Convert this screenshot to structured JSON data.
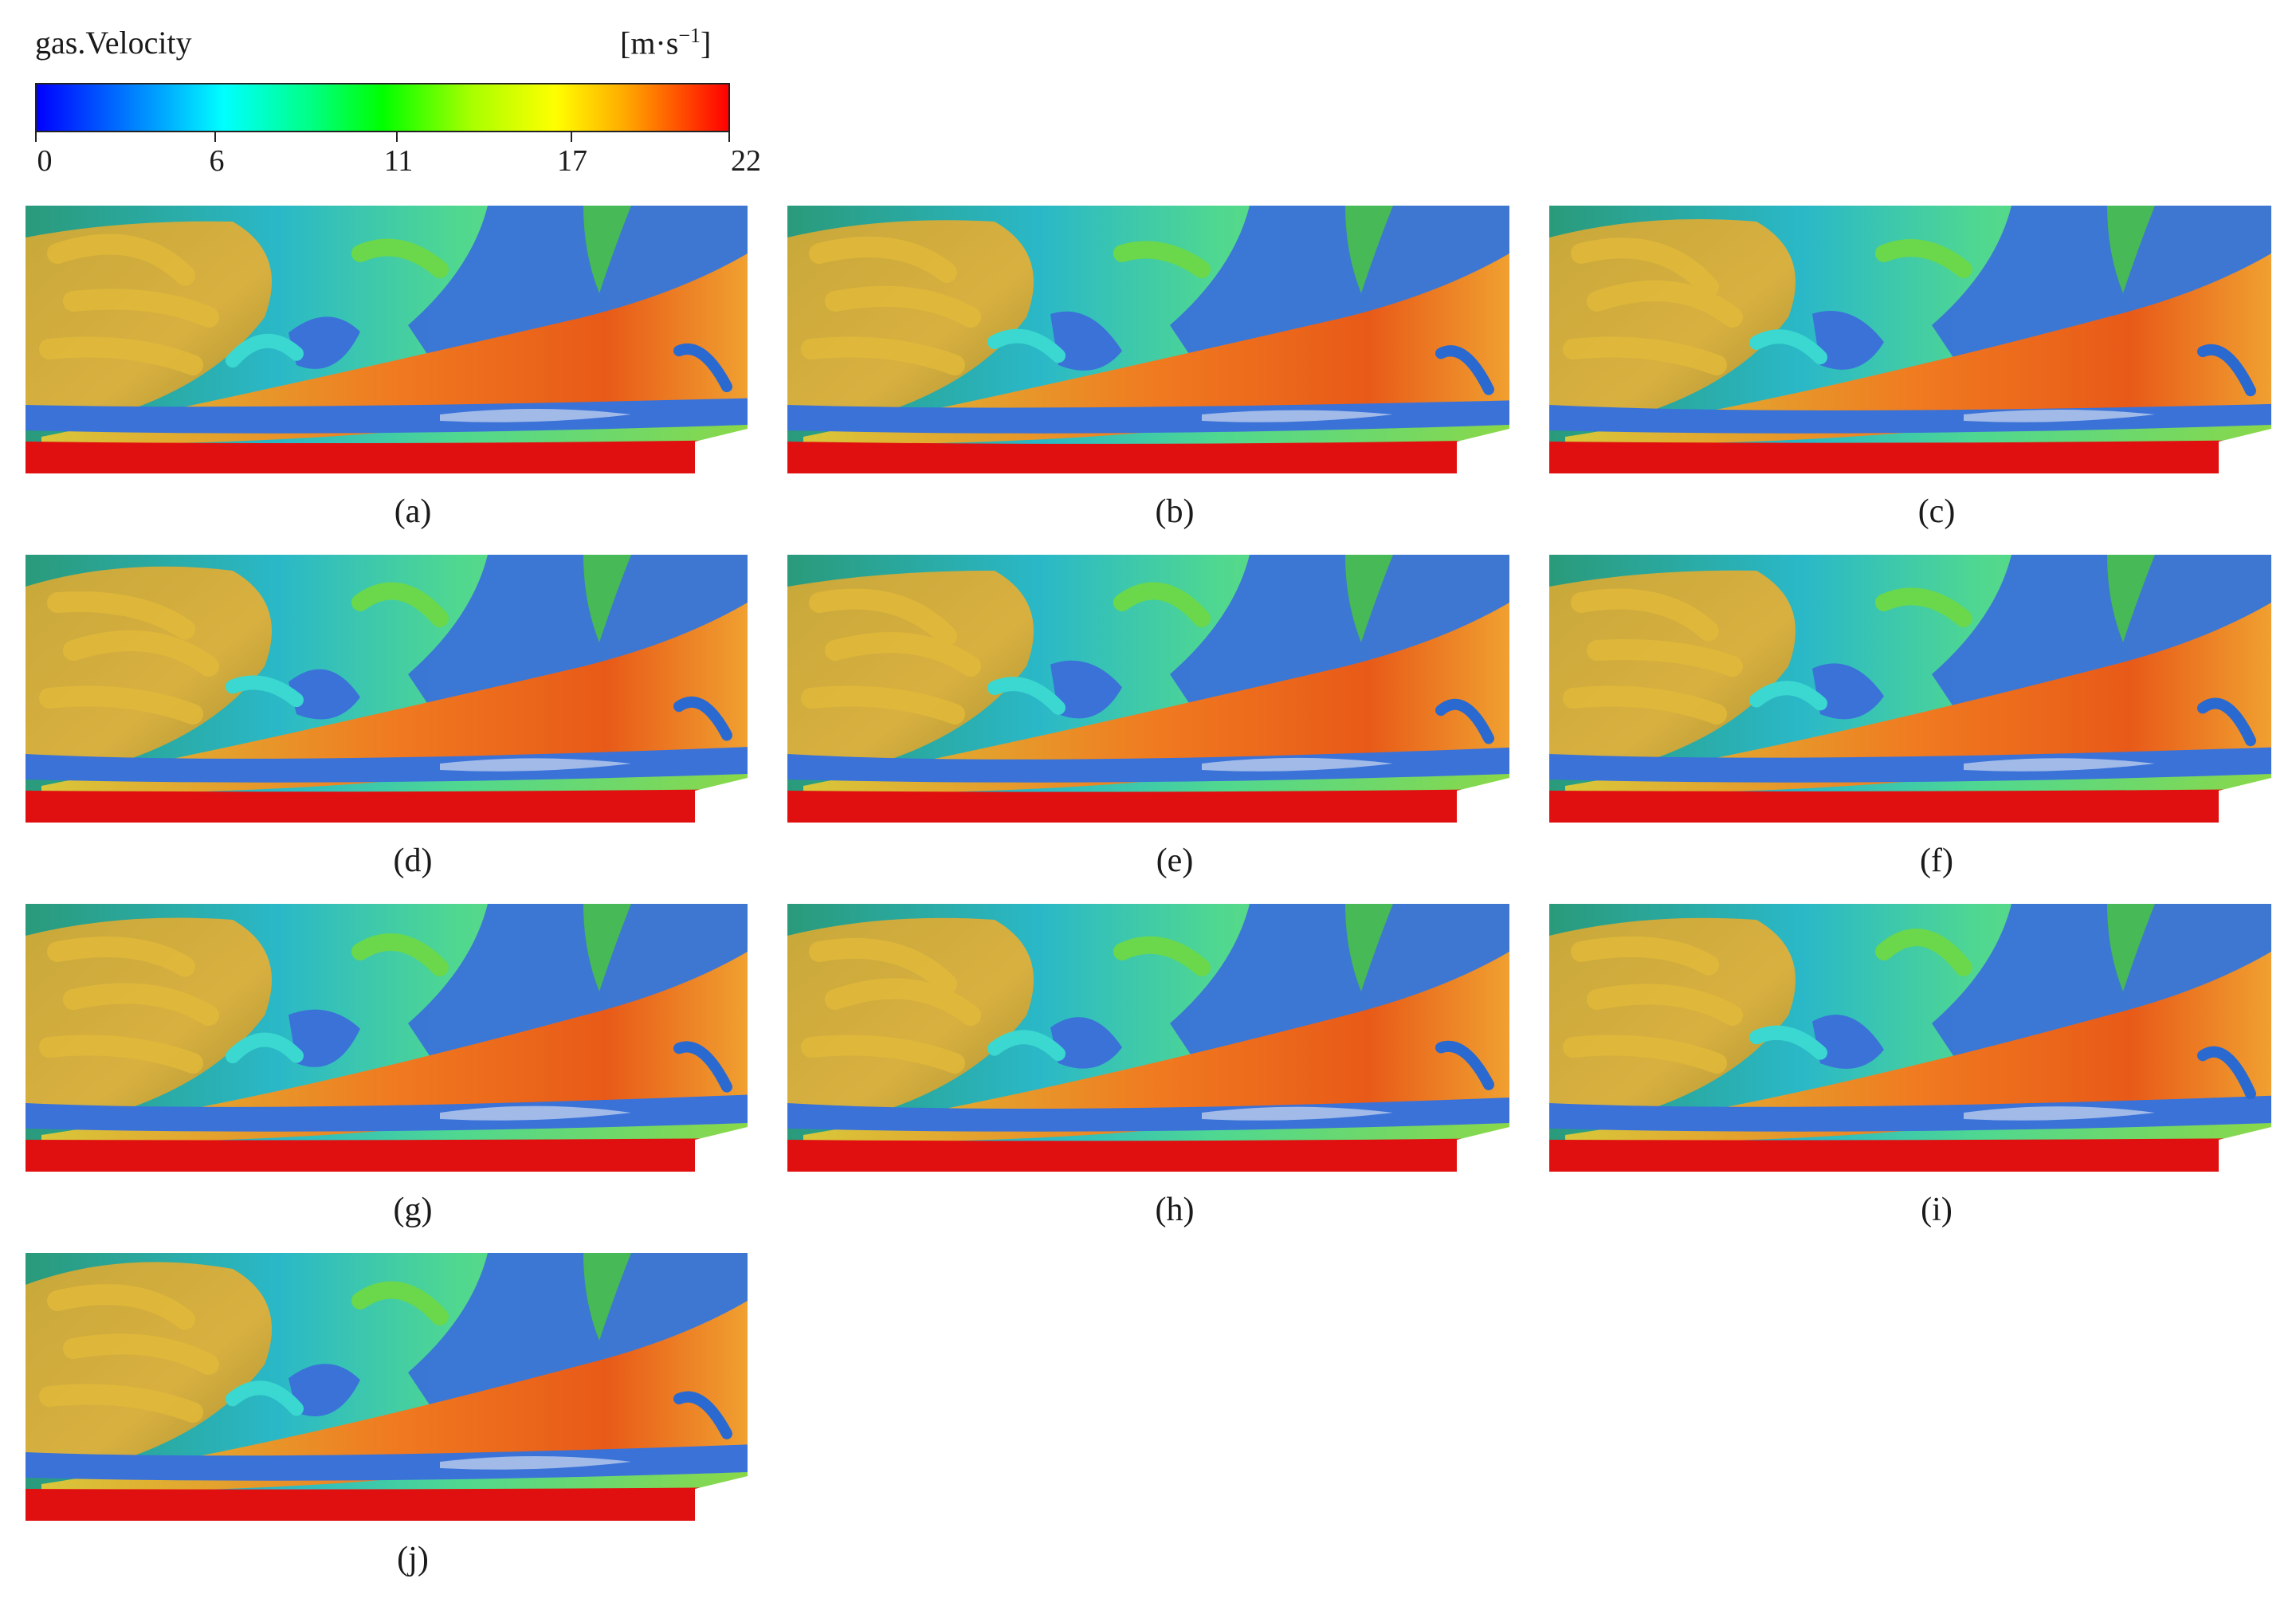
{
  "legend": {
    "title": "gas.Velocity",
    "unit": "[m·s",
    "unit_exp": "−1",
    "unit_close": "]",
    "ticks": [
      "0",
      "6",
      "11",
      "17",
      "22"
    ]
  },
  "panels": [
    {
      "label": "(a)"
    },
    {
      "label": "(b)"
    },
    {
      "label": "(c)"
    },
    {
      "label": "(d)"
    },
    {
      "label": "(e)"
    },
    {
      "label": "(f)"
    },
    {
      "label": "(g)"
    },
    {
      "label": "(h)"
    },
    {
      "label": "(i)"
    },
    {
      "label": "(j)"
    }
  ],
  "colors": {
    "low": "#0000ff",
    "mid": "#00ff00",
    "high": "#ff0000",
    "blue_surface": "#3a72d8",
    "orange": "#f08a1c",
    "yellow": "#d8c83a",
    "cyan": "#3ad8d0",
    "green": "#6ad84a"
  }
}
